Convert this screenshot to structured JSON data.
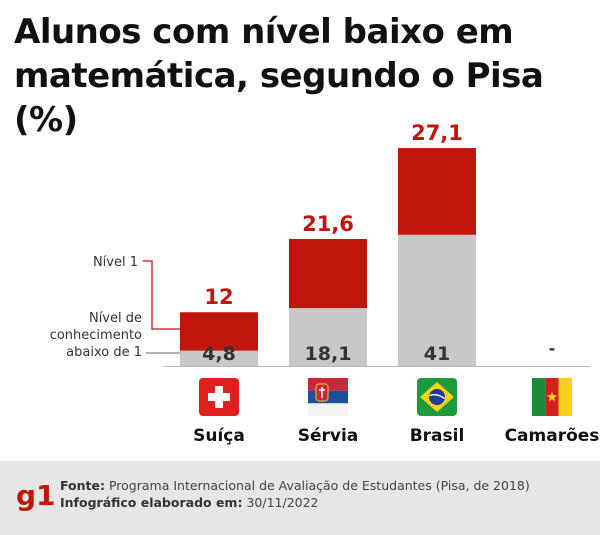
{
  "title_line1": "Alunos com nível baixo em",
  "title_line2": "matemática, segundo o Pisa (%)",
  "chart_data": {
    "type": "bar",
    "stacked": true,
    "categories": [
      "Suíça",
      "Sérvia",
      "Brasil",
      "Camarões"
    ],
    "series": [
      {
        "name": "Nível de conhecimento abaixo de 1",
        "values": [
          4.8,
          18.1,
          41,
          null
        ],
        "labels": [
          "4,8",
          "18,1",
          "41",
          "-"
        ],
        "color": "#c8c8c8"
      },
      {
        "name": "Nível 1",
        "values": [
          12,
          21.6,
          27.1,
          null
        ],
        "labels": [
          "12",
          "21,6",
          "27,1",
          ""
        ],
        "color": "#c0160e"
      }
    ],
    "legend": [
      {
        "label_lines": [
          "Nível 1"
        ]
      },
      {
        "label_lines": [
          "Nível de",
          "conhecimento",
          "abaixo de 1"
        ]
      }
    ],
    "flags": [
      "switzerland-flag",
      "serbia-flag",
      "brazil-flag",
      "cameroon-flag"
    ]
  },
  "colors": {
    "red": "#c0160e",
    "gray": "#c8c8c8",
    "dark_text": "#333333",
    "title": "#111111",
    "footer_bg": "#e6e6e6"
  },
  "footer": {
    "logo": "g1",
    "source_label": "Fonte:",
    "source_text": "Programa Internacional de Avaliação de Estudantes (Pisa, de 2018)",
    "date_label": "Infográfico elaborado em:",
    "date_text": "30/11/2022"
  }
}
